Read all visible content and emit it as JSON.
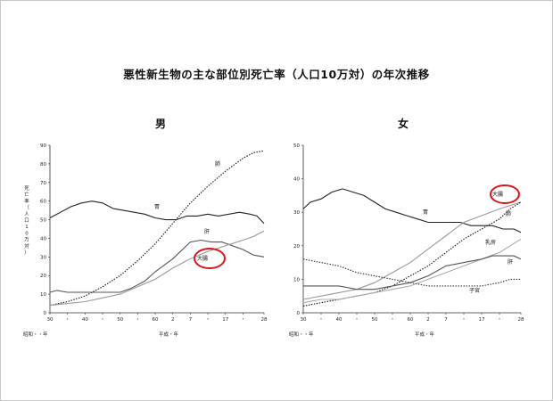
{
  "title": "悪性新生物の主な部位別死亡率（人口10万対）の年次推移",
  "chart_data": [
    {
      "type": "line",
      "title": "男",
      "ylabel": "死亡率（人口10万対）",
      "ylim": [
        0,
        90
      ],
      "yticks": [
        0,
        10,
        20,
        30,
        40,
        50,
        60,
        70,
        80,
        90
      ],
      "xlim": [
        1955,
        2016
      ],
      "xticks": [
        {
          "x": 1955,
          "label": "30"
        },
        {
          "x": 1960,
          "label": "・"
        },
        {
          "x": 1965,
          "label": "40"
        },
        {
          "x": 1970,
          "label": "・"
        },
        {
          "x": 1975,
          "label": "50"
        },
        {
          "x": 1980,
          "label": "・"
        },
        {
          "x": 1985,
          "label": "60"
        },
        {
          "x": 1990,
          "label": "2"
        },
        {
          "x": 1995,
          "label": "7"
        },
        {
          "x": 2000,
          "label": "・"
        },
        {
          "x": 2005,
          "label": "17"
        },
        {
          "x": 2010,
          "label": "・"
        },
        {
          "x": 2016,
          "label": "28"
        }
      ],
      "era_labels": [
        "昭和・・年",
        "平成・年"
      ],
      "highlight": "大腸",
      "series": [
        {
          "name": "肺",
          "style": "dotted",
          "color": "#111111",
          "points": [
            [
              1955,
              4
            ],
            [
              1960,
              6
            ],
            [
              1965,
              9
            ],
            [
              1970,
              14
            ],
            [
              1975,
              20
            ],
            [
              1980,
              28
            ],
            [
              1985,
              37
            ],
            [
              1990,
              48
            ],
            [
              1995,
              59
            ],
            [
              2000,
              68
            ],
            [
              2005,
              76
            ],
            [
              2010,
              83
            ],
            [
              2013,
              86
            ],
            [
              2016,
              87
            ]
          ]
        },
        {
          "name": "胃",
          "style": "solid",
          "color": "#222222",
          "points": [
            [
              1955,
              51
            ],
            [
              1958,
              54
            ],
            [
              1961,
              57
            ],
            [
              1964,
              59
            ],
            [
              1967,
              60
            ],
            [
              1970,
              59
            ],
            [
              1973,
              56
            ],
            [
              1976,
              55
            ],
            [
              1979,
              54
            ],
            [
              1982,
              53
            ],
            [
              1985,
              51
            ],
            [
              1988,
              50
            ],
            [
              1991,
              50
            ],
            [
              1994,
              52
            ],
            [
              1997,
              52
            ],
            [
              2000,
              53
            ],
            [
              2003,
              52
            ],
            [
              2006,
              53
            ],
            [
              2009,
              54
            ],
            [
              2012,
              53
            ],
            [
              2014,
              52
            ],
            [
              2016,
              48
            ]
          ]
        },
        {
          "name": "肝",
          "style": "solid",
          "color": "#555555",
          "points": [
            [
              1955,
              11
            ],
            [
              1957,
              12
            ],
            [
              1960,
              11
            ],
            [
              1965,
              11
            ],
            [
              1970,
              11
            ],
            [
              1975,
              11
            ],
            [
              1978,
              13
            ],
            [
              1982,
              17
            ],
            [
              1985,
              22
            ],
            [
              1990,
              29
            ],
            [
              1995,
              38
            ],
            [
              1998,
              39
            ],
            [
              2001,
              38
            ],
            [
              2004,
              38
            ],
            [
              2007,
              36
            ],
            [
              2010,
              34
            ],
            [
              2013,
              31
            ],
            [
              2016,
              30
            ]
          ]
        },
        {
          "name": "大腸",
          "style": "solid",
          "color": "#999999",
          "points": [
            [
              1955,
              4
            ],
            [
              1960,
              5
            ],
            [
              1965,
              6
            ],
            [
              1970,
              8
            ],
            [
              1975,
              10
            ],
            [
              1980,
              14
            ],
            [
              1985,
              18
            ],
            [
              1990,
              24
            ],
            [
              1995,
              29
            ],
            [
              2000,
              33
            ],
            [
              2005,
              36
            ],
            [
              2010,
              39
            ],
            [
              2013,
              41
            ],
            [
              2016,
              44
            ]
          ]
        }
      ]
    },
    {
      "type": "line",
      "title": "女",
      "ylabel": "",
      "ylim": [
        0,
        50
      ],
      "yticks": [
        0,
        10,
        20,
        30,
        40,
        50
      ],
      "xlim": [
        1955,
        2016
      ],
      "xticks": [
        {
          "x": 1955,
          "label": "30"
        },
        {
          "x": 1960,
          "label": "・"
        },
        {
          "x": 1965,
          "label": "40"
        },
        {
          "x": 1970,
          "label": "・"
        },
        {
          "x": 1975,
          "label": "50"
        },
        {
          "x": 1980,
          "label": "・"
        },
        {
          "x": 1985,
          "label": "60"
        },
        {
          "x": 1990,
          "label": "2"
        },
        {
          "x": 1995,
          "label": "7"
        },
        {
          "x": 2000,
          "label": "・"
        },
        {
          "x": 2005,
          "label": "17"
        },
        {
          "x": 2010,
          "label": "・"
        },
        {
          "x": 2016,
          "label": "28"
        }
      ],
      "era_labels": [
        "昭和・・年",
        "平成・年"
      ],
      "highlight": "大腸",
      "series": [
        {
          "name": "胃",
          "style": "solid",
          "color": "#222222",
          "points": [
            [
              1955,
              31
            ],
            [
              1957,
              33
            ],
            [
              1960,
              34
            ],
            [
              1963,
              36
            ],
            [
              1966,
              37
            ],
            [
              1969,
              36
            ],
            [
              1972,
              35
            ],
            [
              1975,
              33
            ],
            [
              1978,
              31
            ],
            [
              1981,
              30
            ],
            [
              1984,
              29
            ],
            [
              1987,
              28
            ],
            [
              1990,
              27
            ],
            [
              1993,
              27
            ],
            [
              1996,
              27
            ],
            [
              1999,
              27
            ],
            [
              2002,
              26
            ],
            [
              2005,
              26
            ],
            [
              2008,
              26
            ],
            [
              2011,
              25
            ],
            [
              2014,
              25
            ],
            [
              2016,
              24
            ]
          ]
        },
        {
          "name": "大腸",
          "style": "solid",
          "color": "#999999",
          "points": [
            [
              1955,
              4
            ],
            [
              1960,
              5
            ],
            [
              1965,
              6
            ],
            [
              1970,
              7
            ],
            [
              1975,
              9
            ],
            [
              1980,
              12
            ],
            [
              1985,
              15
            ],
            [
              1990,
              19
            ],
            [
              1995,
              23
            ],
            [
              2000,
              27
            ],
            [
              2005,
              29
            ],
            [
              2010,
              31
            ],
            [
              2016,
              33
            ]
          ]
        },
        {
          "name": "肺",
          "style": "dotted",
          "color": "#111111",
          "points": [
            [
              1955,
              2
            ],
            [
              1960,
              3
            ],
            [
              1965,
              4
            ],
            [
              1970,
              5
            ],
            [
              1975,
              6
            ],
            [
              1980,
              8
            ],
            [
              1985,
              11
            ],
            [
              1990,
              14
            ],
            [
              1995,
              18
            ],
            [
              2000,
              22
            ],
            [
              2005,
              25
            ],
            [
              2010,
              28
            ],
            [
              2013,
              31
            ],
            [
              2016,
              33
            ]
          ]
        },
        {
          "name": "乳房",
          "style": "solid",
          "color": "#aaaaaa",
          "points": [
            [
              1955,
              3
            ],
            [
              1960,
              4
            ],
            [
              1965,
              4
            ],
            [
              1970,
              5
            ],
            [
              1975,
              6
            ],
            [
              1980,
              7
            ],
            [
              1985,
              8
            ],
            [
              1990,
              10
            ],
            [
              1995,
              12
            ],
            [
              2000,
              14
            ],
            [
              2005,
              16
            ],
            [
              2010,
              18
            ],
            [
              2013,
              20
            ],
            [
              2016,
              22
            ]
          ]
        },
        {
          "name": "肝",
          "style": "solid",
          "color": "#555555",
          "points": [
            [
              1955,
              8
            ],
            [
              1960,
              8
            ],
            [
              1965,
              8
            ],
            [
              1970,
              7
            ],
            [
              1975,
              7
            ],
            [
              1980,
              8
            ],
            [
              1985,
              9
            ],
            [
              1990,
              11
            ],
            [
              1995,
              14
            ],
            [
              2000,
              15
            ],
            [
              2005,
              16
            ],
            [
              2008,
              17
            ],
            [
              2011,
              17
            ],
            [
              2014,
              17
            ],
            [
              2016,
              16
            ]
          ]
        },
        {
          "name": "子宮",
          "style": "dotted",
          "color": "#333333",
          "points": [
            [
              1955,
              16
            ],
            [
              1960,
              15
            ],
            [
              1965,
              14
            ],
            [
              1970,
              12
            ],
            [
              1975,
              11
            ],
            [
              1980,
              10
            ],
            [
              1985,
              9
            ],
            [
              1990,
              8
            ],
            [
              1995,
              8
            ],
            [
              2000,
              8
            ],
            [
              2005,
              8
            ],
            [
              2010,
              9
            ],
            [
              2013,
              10
            ],
            [
              2016,
              10
            ]
          ]
        }
      ]
    }
  ]
}
